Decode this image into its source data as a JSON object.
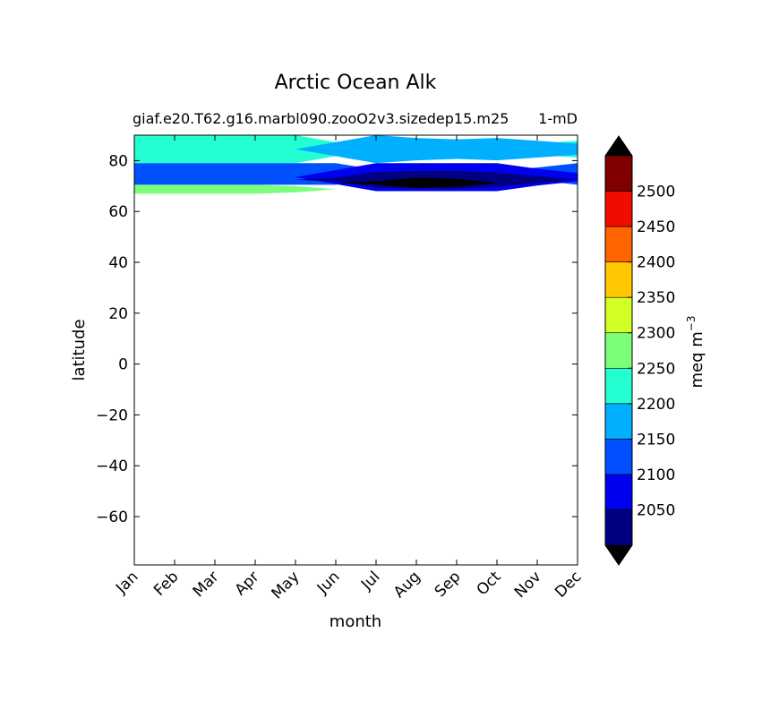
{
  "chart_data": {
    "type": "contour",
    "title": "Arctic Ocean Alk",
    "subtitle_left": "giaf.e20.T62.g16.marbl090.zooO2v3.sizedep15.m25",
    "subtitle_right": "1-mD",
    "xlabel": "month",
    "ylabel": "latitude",
    "x_categories": [
      "Jan",
      "Feb",
      "Mar",
      "Apr",
      "May",
      "Jun",
      "Jul",
      "Aug",
      "Sep",
      "Oct",
      "Nov",
      "Dec"
    ],
    "xlim": [
      0,
      11
    ],
    "ylim": [
      -79,
      90
    ],
    "y_ticks": [
      80,
      60,
      40,
      20,
      0,
      -20,
      -40,
      -60
    ],
    "y_tick_labels": [
      "80",
      "60",
      "40",
      "20",
      "0",
      "−20",
      "−40",
      "−60"
    ],
    "latitude_lines": [
      90,
      87,
      84,
      79,
      76,
      73.5,
      70.5,
      69,
      68,
      67
    ],
    "layers": [
      {
        "level": 2200,
        "color": "#24ffd2",
        "top_row": 0,
        "bottom_row": 3,
        "mask": [
          1,
          1,
          1,
          1,
          1,
          0.5,
          0,
          0,
          0,
          0.2,
          0.4,
          0.6
        ]
      },
      {
        "level": 2150,
        "color": "#00b0ff",
        "top_row": 0,
        "bottom_row": 3,
        "mask": [
          0,
          0,
          0,
          0,
          0,
          0.5,
          1,
          0.8,
          0.7,
          0.8,
          0.6,
          0.4
        ]
      },
      {
        "level": 2100,
        "color": "#0050ff",
        "top_row": 3,
        "bottom_row": 6,
        "mask": [
          1,
          1,
          1,
          1,
          1,
          1,
          0.4,
          0.2,
          0.2,
          0.3,
          0.6,
          1
        ]
      },
      {
        "level": 2050,
        "color": "#0000f0",
        "top_row": 3,
        "bottom_row": 8,
        "mask": [
          0,
          0,
          0,
          0,
          0,
          0.5,
          1,
          1,
          1,
          1,
          0.6,
          0.3
        ]
      },
      {
        "level": 2000,
        "color": "#000080",
        "top_row": 4,
        "bottom_row": 7,
        "mask": [
          0,
          0,
          0,
          0,
          0,
          0.2,
          0.9,
          1,
          1,
          0.8,
          0.4,
          0
        ]
      },
      {
        "level": 1950,
        "color": "#000000",
        "top_row": 5,
        "bottom_row": 7,
        "mask": [
          0,
          0,
          0,
          0,
          0,
          0,
          0.3,
          0.9,
          0.7,
          0,
          0,
          0
        ]
      },
      {
        "level": 2250,
        "color": "#7bff7b",
        "top_row": 6,
        "bottom_row": 9,
        "mask": [
          1,
          1,
          1,
          1,
          0.7,
          0,
          0,
          0,
          0,
          0,
          0,
          0
        ]
      }
    ],
    "colorbar": {
      "label": "meq m",
      "label_exponent": "−3",
      "levels": [
        2000,
        2050,
        2100,
        2150,
        2200,
        2250,
        2300,
        2350,
        2400,
        2450,
        2500,
        2550
      ],
      "colors": [
        "#000080",
        "#0000f0",
        "#0050ff",
        "#00b0ff",
        "#24ffd2",
        "#7bff7b",
        "#d2ff24",
        "#ffc800",
        "#ff6400",
        "#f00d00",
        "#800000"
      ],
      "extend_min_color": "#000000",
      "extend_max_color": "#000000",
      "tick_labels": [
        "2050",
        "2100",
        "2150",
        "2200",
        "2250",
        "2300",
        "2350",
        "2400",
        "2450",
        "2500"
      ]
    }
  }
}
